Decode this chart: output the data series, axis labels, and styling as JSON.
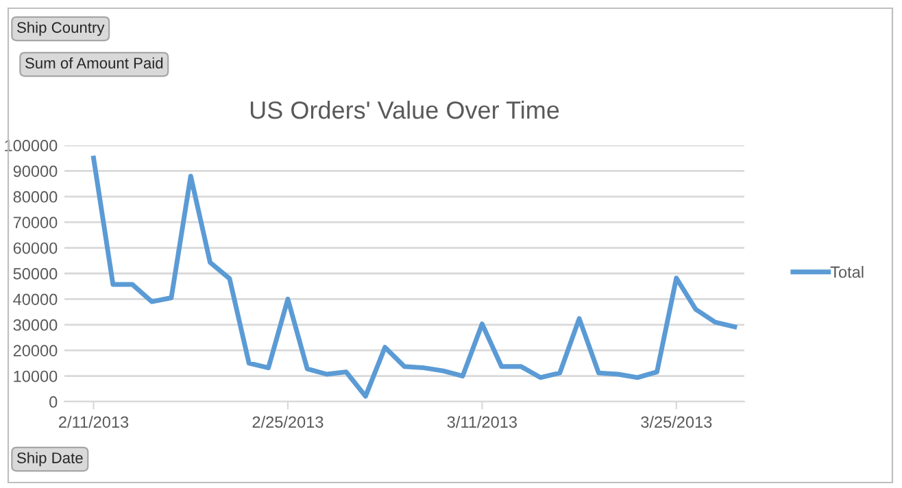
{
  "chart_data": {
    "type": "line",
    "title": "US Orders' Value Over Time",
    "categories": [
      "2/11/2013",
      null,
      null,
      null,
      null,
      null,
      null,
      null,
      null,
      null,
      "2/25/2013",
      null,
      null,
      null,
      null,
      null,
      null,
      null,
      null,
      null,
      "3/11/2013",
      null,
      null,
      null,
      null,
      null,
      null,
      null,
      null,
      null,
      "3/25/2013",
      null,
      null,
      null
    ],
    "series": [
      {
        "name": "Total",
        "color": "#5b9bd5",
        "values": [
          95000,
          45700,
          45700,
          39000,
          40500,
          88000,
          54300,
          48000,
          15000,
          13200,
          40000,
          12800,
          10700,
          11600,
          2100,
          21200,
          13700,
          13200,
          12000,
          10000,
          30300,
          13700,
          13700,
          9400,
          11200,
          32400,
          11200,
          10700,
          9400,
          11600,
          48200,
          36000,
          31000,
          29200
        ]
      }
    ],
    "ylim": [
      0,
      100000
    ],
    "yticks": [
      0,
      10000,
      20000,
      30000,
      40000,
      50000,
      60000,
      70000,
      80000,
      90000,
      100000
    ],
    "grid": "y",
    "legend": "right",
    "marker": "none",
    "line_style": "solid",
    "annotations": [
      "Ship Country",
      "Sum of Amount Paid",
      "Ship Date"
    ]
  }
}
